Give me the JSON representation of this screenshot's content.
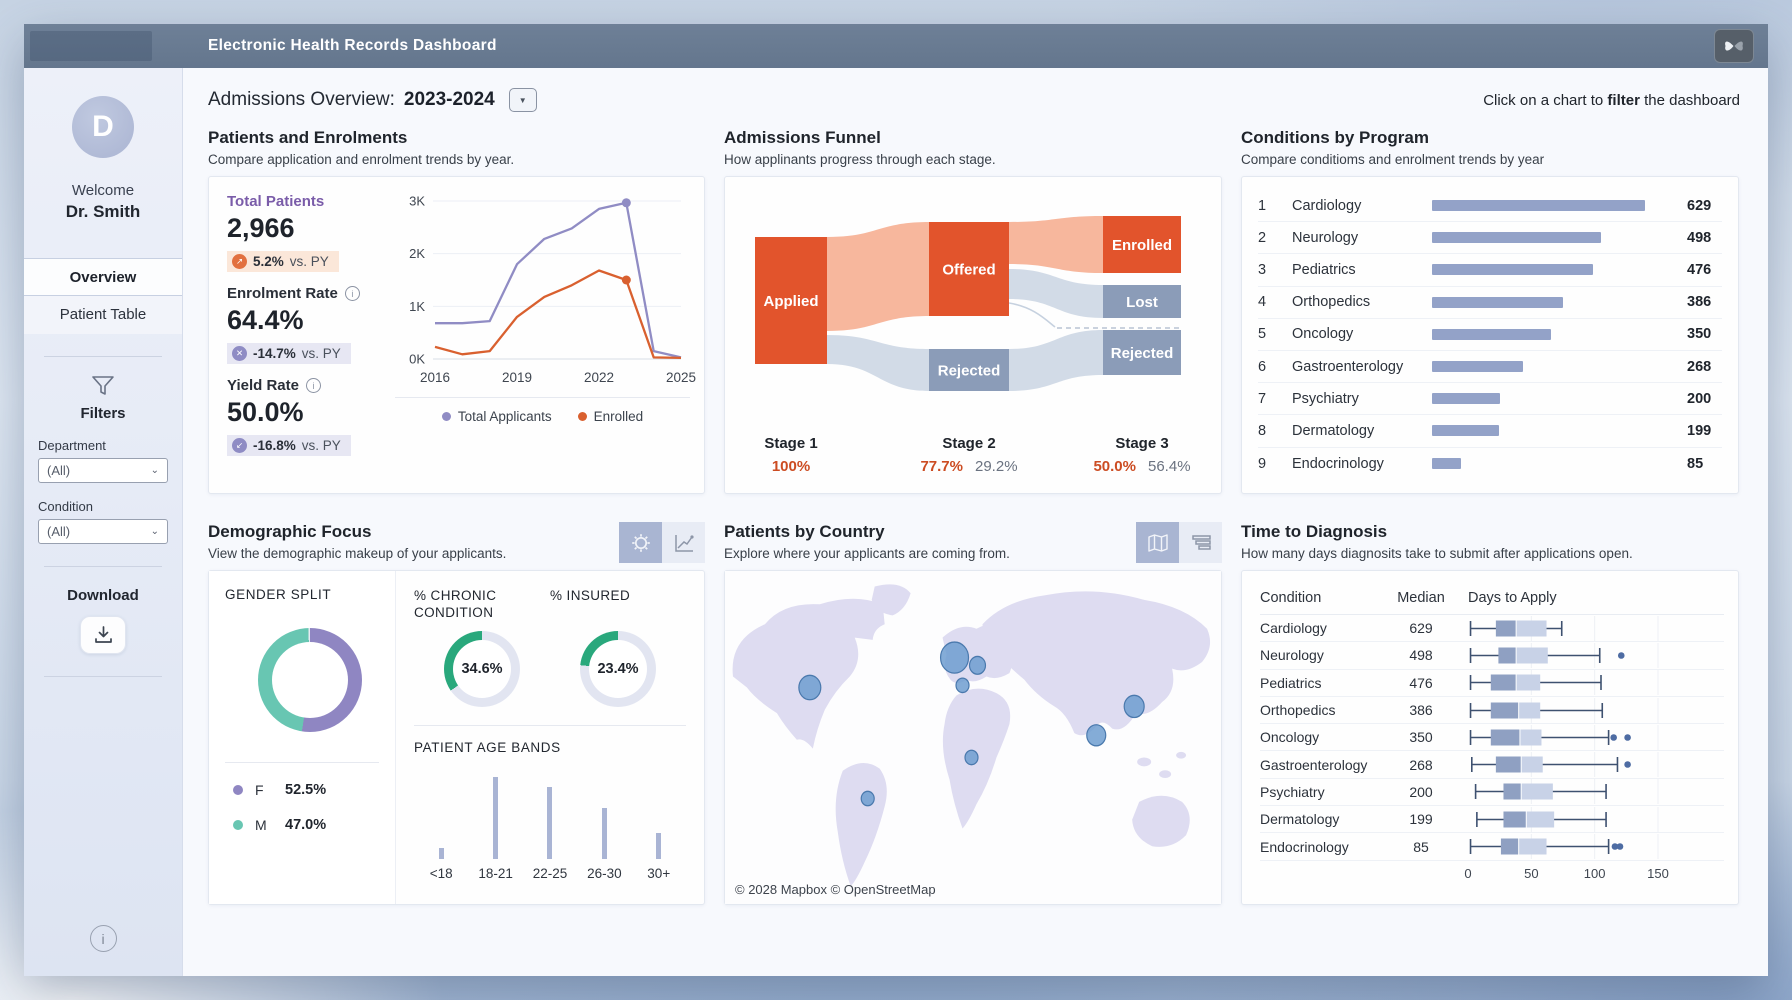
{
  "app": {
    "title": "Electronic Health Records Dashboard"
  },
  "sidebar": {
    "avatar_letter": "D",
    "welcome": "Welcome",
    "user_name": "Dr. Smith",
    "nav": [
      {
        "label": "Overview",
        "active": true
      },
      {
        "label": "Patient Table",
        "active": false
      }
    ],
    "filters_label": "Filters",
    "department_label": "Department",
    "department_value": "(All)",
    "condition_label": "Condition",
    "condition_value": "(All)",
    "download_label": "Download"
  },
  "header": {
    "title": "Admissions Overview:",
    "period": "2023-2024",
    "hint_prefix": "Click on a chart to ",
    "hint_bold": "filter",
    "hint_suffix": " the dashboard"
  },
  "cards": {
    "enrolments": {
      "title": "Patients and Enrolments",
      "subtitle": "Compare application and enrolment trends by year.",
      "kpis": [
        {
          "label": "Total Patients",
          "label_color": "#7a5ca9",
          "value": "2,966",
          "delta": "5.2%",
          "suffix": " vs. PY",
          "tone": "orange",
          "icon_glyph": "↗",
          "info": false
        },
        {
          "label": "Enrolment Rate",
          "label_color": "#2a2f38",
          "value": "64.4%",
          "delta": "-14.7%",
          "suffix": " vs. PY",
          "tone": "purple",
          "icon_glyph": "✕",
          "info": true
        },
        {
          "label": "Yield Rate",
          "label_color": "#2a2f38",
          "value": "50.0%",
          "delta": "-16.8%",
          "suffix": " vs. PY",
          "tone": "purple",
          "icon_glyph": "↙",
          "info": true
        }
      ]
    },
    "funnel": {
      "title": "Admissions Funnel",
      "subtitle": "How applinants progress through each stage.",
      "stages": [
        {
          "label": "Stage 1",
          "primary": "100%",
          "secondary": ""
        },
        {
          "label": "Stage 2",
          "primary": "77.7%",
          "secondary": "29.2%"
        },
        {
          "label": "Stage 3",
          "primary": "50.0%",
          "secondary": "56.4%"
        }
      ]
    },
    "conditions": {
      "title": "Conditions by Program",
      "subtitle": "Compare conditioms and enrolment trends by year"
    },
    "demographics": {
      "title": "Demographic Focus",
      "subtitle": "View the demographic makeup of your applicants.",
      "gender_title": "GENDER SPLIT",
      "chronic_title": "% CHRONIC CONDITION",
      "insured_title": "% INSURED",
      "age_title": "PATIENT AGE BANDS"
    },
    "map": {
      "title": "Patients by Country",
      "subtitle": "Explore where your applicants are coming from.",
      "attribution": "© 2028 Mapbox © OpenStreetMap"
    },
    "diagnosis": {
      "title": "Time to Diagnosis",
      "subtitle": "How many days diagnosits take to submit after applications open.",
      "col_condition": "Condition",
      "col_median": "Median",
      "col_days": "Days to Apply"
    }
  },
  "chart_data": [
    {
      "id": "enrolment_trends",
      "type": "line",
      "title": "Patients and Enrolments",
      "x": [
        2016,
        2017,
        2018,
        2019,
        2020,
        2021,
        2022,
        2023,
        2024,
        2025
      ],
      "xticks": [
        2016,
        2019,
        2022,
        2025
      ],
      "yticks": [
        "0K",
        "1K",
        "2K",
        "3K"
      ],
      "ylim": [
        0,
        3000
      ],
      "highlight_x": 2023,
      "series": [
        {
          "name": "Total Applicants",
          "color": "#908cc4",
          "values": [
            680,
            680,
            720,
            1800,
            2280,
            2480,
            2850,
            2966,
            150,
            30
          ]
        },
        {
          "name": "Enrolled",
          "color": "#d9602f",
          "values": [
            230,
            90,
            150,
            800,
            1180,
            1400,
            1680,
            1500,
            30,
            20
          ]
        }
      ]
    },
    {
      "id": "admissions_funnel",
      "type": "sankey",
      "nodes": [
        {
          "id": "applied",
          "label": "Applied",
          "tone": "orange"
        },
        {
          "id": "offered",
          "label": "Offered",
          "tone": "orange"
        },
        {
          "id": "rejected2",
          "label": "Rejected",
          "tone": "slate"
        },
        {
          "id": "enrolled",
          "label": "Enrolled",
          "tone": "orange"
        },
        {
          "id": "lost",
          "label": "Lost",
          "tone": "slate"
        },
        {
          "id": "rejected3",
          "label": "Rejected",
          "tone": "slate"
        }
      ],
      "stage_conversions": [
        {
          "stage": "Stage 1",
          "primary": "100%"
        },
        {
          "stage": "Stage 2",
          "primary": "77.7%",
          "secondary": "29.2%"
        },
        {
          "stage": "Stage 3",
          "primary": "50.0%",
          "secondary": "56.4%"
        }
      ]
    },
    {
      "id": "conditions_by_program",
      "type": "bar",
      "categories": [
        "Cardiology",
        "Neurology",
        "Pediatrics",
        "Orthopedics",
        "Oncology",
        "Gastroenterology",
        "Psychiatry",
        "Dermatology",
        "Endocrinology"
      ],
      "values": [
        629,
        498,
        476,
        386,
        350,
        268,
        200,
        199,
        85
      ],
      "xlim": [
        0,
        629
      ]
    },
    {
      "id": "gender_split",
      "type": "pie",
      "slices": [
        {
          "label": "F",
          "value": 52.5,
          "display": "52.5%",
          "color": "#8f86c2"
        },
        {
          "label": "M",
          "value": 47.0,
          "display": "47.0%",
          "color": "#68c6b2"
        }
      ]
    },
    {
      "id": "chronic_gauge",
      "type": "gauge",
      "value": 34.6,
      "display": "34.6%",
      "color": "#29a87c"
    },
    {
      "id": "insured_gauge",
      "type": "gauge",
      "value": 23.4,
      "display": "23.4%",
      "color": "#29a87c"
    },
    {
      "id": "age_bands",
      "type": "bar",
      "categories": [
        "<18",
        "18-21",
        "22-25",
        "26-30",
        "30+"
      ],
      "values_relative": [
        13,
        100,
        88,
        62,
        32
      ]
    },
    {
      "id": "patients_by_country",
      "type": "scatter",
      "points": [
        {
          "name": "United States",
          "x": 85,
          "y": 105,
          "r": 11
        },
        {
          "name": "United Kingdom",
          "x": 230,
          "y": 78,
          "r": 14
        },
        {
          "name": "Germany",
          "x": 253,
          "y": 85,
          "r": 8
        },
        {
          "name": "France",
          "x": 238,
          "y": 103,
          "r": 6.5
        },
        {
          "name": "Brazil",
          "x": 143,
          "y": 205,
          "r": 6.5
        },
        {
          "name": "Nigeria",
          "x": 247,
          "y": 168,
          "r": 6.5
        },
        {
          "name": "India",
          "x": 372,
          "y": 148,
          "r": 9.5
        },
        {
          "name": "China",
          "x": 410,
          "y": 122,
          "r": 10
        }
      ]
    },
    {
      "id": "time_to_diagnosis",
      "type": "boxplot",
      "xlim": [
        0,
        150
      ],
      "xticks": [
        0,
        50,
        100,
        150
      ],
      "rows": [
        {
          "condition": "Cardiology",
          "median_count": 629,
          "min": 2,
          "q1": 22,
          "median": 38,
          "q3": 62,
          "max": 74,
          "outliers": []
        },
        {
          "condition": "Neurology",
          "median_count": 498,
          "min": 2,
          "q1": 24,
          "median": 38,
          "q3": 63,
          "max": 104,
          "outliers": [
            121
          ]
        },
        {
          "condition": "Pediatrics",
          "median_count": 476,
          "min": 2,
          "q1": 18,
          "median": 38,
          "q3": 57,
          "max": 105,
          "outliers": []
        },
        {
          "condition": "Orthopedics",
          "median_count": 386,
          "min": 2,
          "q1": 18,
          "median": 40,
          "q3": 57,
          "max": 106,
          "outliers": []
        },
        {
          "condition": "Oncology",
          "median_count": 350,
          "min": 2,
          "q1": 18,
          "median": 41,
          "q3": 58,
          "max": 111,
          "outliers": [
            115,
            126
          ]
        },
        {
          "condition": "Gastroenterology",
          "median_count": 268,
          "min": 3,
          "q1": 22,
          "median": 42,
          "q3": 59,
          "max": 118,
          "outliers": [
            126
          ]
        },
        {
          "condition": "Psychiatry",
          "median_count": 200,
          "min": 6,
          "q1": 28,
          "median": 42,
          "q3": 67,
          "max": 109,
          "outliers": []
        },
        {
          "condition": "Dermatology",
          "median_count": 199,
          "min": 7,
          "q1": 28,
          "median": 46,
          "q3": 68,
          "max": 109,
          "outliers": []
        },
        {
          "condition": "Endocrinology",
          "median_count": 85,
          "min": 2,
          "q1": 26,
          "median": 40,
          "q3": 62,
          "max": 111,
          "outliers": [
            116,
            120
          ]
        }
      ]
    }
  ]
}
